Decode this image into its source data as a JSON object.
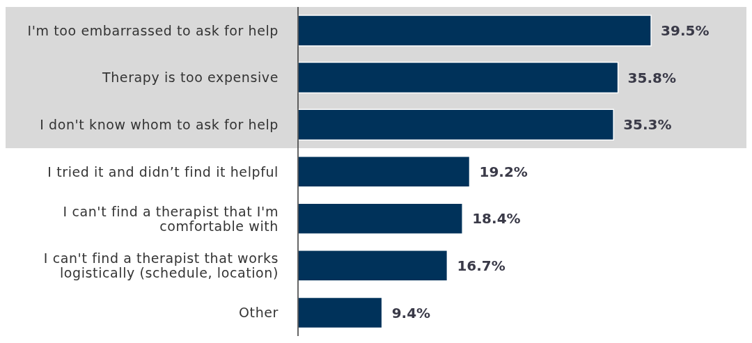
{
  "chart_data": {
    "type": "bar",
    "orientation": "horizontal",
    "categories": [
      "I'm too embarrassed to ask for help",
      "Therapy is too expensive",
      "I don't know whom to ask for help",
      "I tried it and didn’t find it helpful",
      "I can't find a therapist that I'm comfortable with",
      "I can't find a therapist that works logistically (schedule, location)",
      "Other"
    ],
    "values": [
      39.5,
      35.8,
      35.3,
      19.2,
      18.4,
      16.7,
      9.4
    ],
    "color": "#00325a",
    "value_labels": [
      "39.5%",
      "35.8%",
      "35.3%",
      "19.2%",
      "18.4%",
      "16.7%",
      "9.4%"
    ],
    "bands": [
      {
        "axis": "y",
        "from": "I'm too embarrassed to ask for help",
        "to": "I don't know whom to ask for help",
        "color": "#d9d9d9"
      }
    ]
  }
}
